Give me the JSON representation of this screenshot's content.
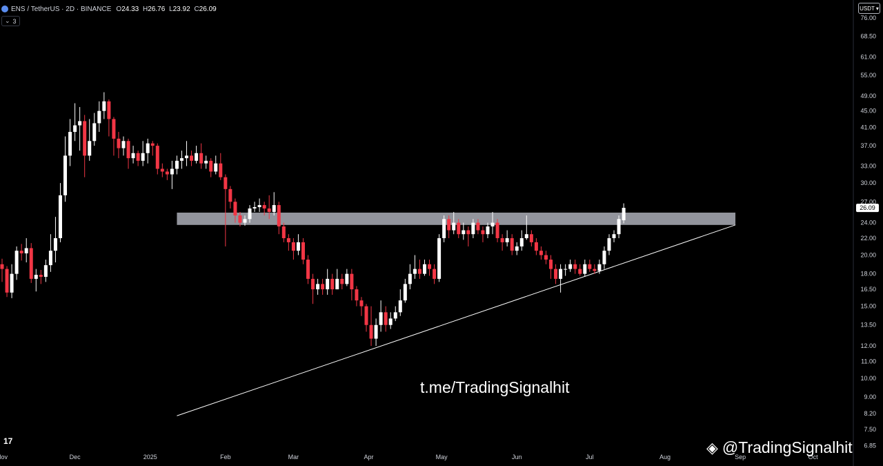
{
  "header": {
    "symbol": "ENS / TetherUS · 2D · BINANCE",
    "open_label": "O",
    "open": "24.33",
    "high_label": "H",
    "high": "26.76",
    "low_label": "L",
    "low": "23.92",
    "close_label": "C",
    "close": "26.09",
    "indicator_count": "3",
    "currency": "USDT"
  },
  "watermarks": {
    "center": "t.me/TradingSignalhit",
    "bottom_right": "@TradingSignalhit",
    "platform_logo": "17"
  },
  "colors": {
    "background": "#000000",
    "up": "#ffffff",
    "down": "#f23645",
    "zone": "#b2b5be",
    "trendline": "#ffffff"
  },
  "chart_data": {
    "type": "candlestick",
    "scale": "log",
    "ylim": [
      6.6,
      84
    ],
    "y_ticks": [
      "76.00",
      "68.50",
      "61.00",
      "55.00",
      "49.00",
      "45.00",
      "41.00",
      "37.00",
      "33.00",
      "30.00",
      "27.00",
      "24.00",
      "22.00",
      "20.00",
      "18.00",
      "16.50",
      "15.00",
      "13.50",
      "12.00",
      "11.00",
      "10.00",
      "9.00",
      "8.20",
      "7.50",
      "6.85"
    ],
    "x_ticks": [
      {
        "label": "Nov",
        "day": 0
      },
      {
        "label": "Dec",
        "day": 30
      },
      {
        "label": "2025",
        "day": 61
      },
      {
        "label": "Feb",
        "day": 92
      },
      {
        "label": "Mar",
        "day": 120
      },
      {
        "label": "Apr",
        "day": 151
      },
      {
        "label": "May",
        "day": 181
      },
      {
        "label": "Jun",
        "day": 212
      },
      {
        "label": "Jul",
        "day": 242
      },
      {
        "label": "Aug",
        "day": 273
      },
      {
        "label": "Sep",
        "day": 304
      },
      {
        "label": "Oct",
        "day": 334
      }
    ],
    "last_price": "26.09",
    "resistance_zone": {
      "low": 23.7,
      "high": 25.4,
      "start_day": 72,
      "end_day": 302
    },
    "trendline": {
      "start_day": 72,
      "start_value": 8.1,
      "end_day": 302,
      "end_value": 23.7
    },
    "candles": [
      [
        0,
        19,
        18.5,
        19.6,
        17.2
      ],
      [
        2,
        18.5,
        16.2,
        18.8,
        15.8
      ],
      [
        4,
        16.2,
        18,
        19,
        15.7
      ],
      [
        6,
        18,
        20.5,
        21,
        17.4
      ],
      [
        8,
        20.5,
        20.2,
        21.3,
        19.4
      ],
      [
        10,
        20.2,
        20.8,
        22,
        19.2
      ],
      [
        12,
        20.8,
        17.5,
        21.4,
        17.1
      ],
      [
        14,
        17.5,
        17.9,
        18.5,
        16.3
      ],
      [
        16,
        17.9,
        17.7,
        18.4,
        17
      ],
      [
        18,
        17.7,
        18.9,
        19.5,
        17.2
      ],
      [
        20,
        18.9,
        20.5,
        22.5,
        18.2
      ],
      [
        22,
        20.5,
        22,
        24.8,
        19.2
      ],
      [
        24,
        22,
        28,
        30,
        21.5
      ],
      [
        26,
        28,
        35,
        39,
        27
      ],
      [
        28,
        35,
        40,
        43,
        33
      ],
      [
        30,
        40,
        41.5,
        47,
        38
      ],
      [
        32,
        41.5,
        42.5,
        46,
        36
      ],
      [
        34,
        42.5,
        35,
        44,
        31
      ],
      [
        36,
        35,
        38,
        43,
        34
      ],
      [
        38,
        38,
        42,
        44.5,
        37
      ],
      [
        40,
        42,
        45,
        47.5,
        40
      ],
      [
        42,
        45,
        47.5,
        50,
        43
      ],
      [
        44,
        47.5,
        43,
        48,
        39
      ],
      [
        46,
        43,
        38.5,
        43.5,
        35
      ],
      [
        48,
        38.5,
        36.5,
        40,
        34.5
      ],
      [
        50,
        36.5,
        38,
        39,
        35
      ],
      [
        52,
        38,
        34.5,
        38.5,
        32.5
      ],
      [
        54,
        34.5,
        35.5,
        37,
        33.5
      ],
      [
        56,
        35.5,
        34,
        36,
        33
      ],
      [
        58,
        34,
        35.5,
        38,
        33
      ],
      [
        60,
        35.5,
        37.5,
        38.5,
        33.5
      ],
      [
        62,
        37.5,
        37,
        38,
        35
      ],
      [
        64,
        37,
        32.5,
        37.5,
        31.5
      ],
      [
        66,
        32.5,
        32,
        33.5,
        31
      ],
      [
        68,
        32,
        31.5,
        32.5,
        30.5
      ],
      [
        70,
        31.5,
        32.5,
        34,
        29
      ],
      [
        72,
        32.5,
        34,
        35,
        31.5
      ],
      [
        74,
        34,
        34.5,
        36,
        32.5
      ],
      [
        76,
        34.5,
        35,
        38,
        33
      ],
      [
        78,
        35,
        34,
        36,
        33
      ],
      [
        80,
        34,
        35.5,
        37,
        33.5
      ],
      [
        82,
        35.5,
        33.5,
        37.5,
        32.5
      ],
      [
        84,
        33.5,
        34,
        35,
        32.5
      ],
      [
        86,
        34,
        32,
        34.5,
        31
      ],
      [
        88,
        32,
        33.5,
        35,
        31.5
      ],
      [
        90,
        33.5,
        31,
        35.5,
        30.5
      ],
      [
        92,
        31,
        29,
        31.5,
        21
      ],
      [
        94,
        29,
        27,
        29.5,
        26
      ],
      [
        96,
        27,
        25,
        27.5,
        24
      ],
      [
        98,
        25,
        24,
        25.5,
        23.5
      ],
      [
        100,
        24,
        24.5,
        25,
        23.6
      ],
      [
        102,
        24.5,
        26,
        26.5,
        24
      ],
      [
        104,
        26,
        26.2,
        27,
        25.5
      ],
      [
        106,
        26.2,
        26.5,
        27.5,
        25.5
      ],
      [
        108,
        26.5,
        26,
        27,
        25
      ],
      [
        110,
        26,
        25.5,
        28,
        24.5
      ],
      [
        112,
        25.5,
        26.5,
        28.5,
        25
      ],
      [
        114,
        26.5,
        23.5,
        27,
        22.5
      ],
      [
        116,
        23.5,
        22,
        24,
        21.5
      ],
      [
        118,
        22,
        21.5,
        22.5,
        20.5
      ],
      [
        120,
        21.5,
        20.5,
        22,
        19.5
      ],
      [
        122,
        20.5,
        21.5,
        22.5,
        20
      ],
      [
        124,
        21.5,
        19.5,
        22,
        19
      ],
      [
        126,
        19.5,
        17.5,
        20,
        17
      ],
      [
        128,
        17.5,
        16.5,
        18,
        15.2
      ],
      [
        130,
        16.5,
        17,
        17.5,
        16
      ],
      [
        132,
        17,
        16.5,
        17.5,
        16
      ],
      [
        134,
        16.5,
        17.5,
        18.5,
        16
      ],
      [
        136,
        17.5,
        16.5,
        18,
        16
      ],
      [
        138,
        16.5,
        17.5,
        18.5,
        16.5
      ],
      [
        140,
        17.5,
        17,
        18,
        16.5
      ],
      [
        142,
        17,
        18,
        18.5,
        16.8
      ],
      [
        144,
        18,
        16.5,
        18.5,
        15.5
      ],
      [
        146,
        16.5,
        15.5,
        16.8,
        15
      ],
      [
        148,
        15.5,
        15,
        15.8,
        14.2
      ],
      [
        150,
        15,
        13.5,
        15.2,
        13
      ],
      [
        152,
        13.5,
        12.5,
        15,
        12
      ],
      [
        154,
        12.5,
        13.5,
        14,
        12
      ],
      [
        156,
        13.5,
        14.5,
        15.5,
        13
      ],
      [
        158,
        14.5,
        13.5,
        15,
        13
      ],
      [
        160,
        13.5,
        14,
        14.5,
        13.2
      ],
      [
        162,
        14,
        14.5,
        15,
        13.8
      ],
      [
        164,
        14.5,
        15.5,
        16.5,
        14.2
      ],
      [
        166,
        15.5,
        17,
        17.5,
        15.3
      ],
      [
        168,
        17,
        18,
        19,
        16.5
      ],
      [
        170,
        18,
        18.5,
        20,
        17.5
      ],
      [
        172,
        18.5,
        18,
        19.5,
        17.5
      ],
      [
        174,
        18,
        19,
        19.5,
        17.8
      ],
      [
        176,
        19,
        18.5,
        19.5,
        17.8
      ],
      [
        178,
        18.5,
        17.5,
        19,
        17
      ],
      [
        180,
        17.5,
        22,
        22.5,
        17.2
      ],
      [
        182,
        22,
        24.5,
        25,
        21.5
      ],
      [
        184,
        24.5,
        23,
        25,
        22
      ],
      [
        186,
        23,
        24,
        25.5,
        22.5
      ],
      [
        188,
        24,
        22.5,
        24.5,
        22
      ],
      [
        190,
        22.5,
        23,
        24,
        21.8
      ],
      [
        192,
        23,
        22.5,
        23.5,
        21
      ],
      [
        194,
        22.5,
        24,
        24.5,
        22
      ],
      [
        196,
        24,
        23,
        24.5,
        22.5
      ],
      [
        198,
        23,
        22.5,
        23.5,
        21.5
      ],
      [
        200,
        22.5,
        23.5,
        24,
        22
      ],
      [
        202,
        23.5,
        24,
        25.5,
        22.5
      ],
      [
        204,
        24,
        22,
        24.5,
        21.5
      ],
      [
        206,
        22,
        21.5,
        22.5,
        20.5
      ],
      [
        208,
        21.5,
        22,
        23,
        21
      ],
      [
        210,
        22,
        20.5,
        22.5,
        20
      ],
      [
        212,
        20.5,
        21,
        21.5,
        20
      ],
      [
        214,
        21,
        22,
        23,
        20.5
      ],
      [
        216,
        22,
        22.5,
        25,
        21.8
      ],
      [
        218,
        22.5,
        21.5,
        23,
        21
      ],
      [
        220,
        21.5,
        20.5,
        22,
        20
      ],
      [
        222,
        20.5,
        20,
        21,
        19.5
      ],
      [
        224,
        20,
        19.5,
        20.5,
        19
      ],
      [
        226,
        19.5,
        18.5,
        20,
        17.5
      ],
      [
        228,
        18.5,
        17.5,
        19,
        17
      ],
      [
        230,
        17.5,
        18.5,
        19,
        16.2
      ],
      [
        232,
        18.5,
        18.5,
        19,
        17.8
      ],
      [
        234,
        18.5,
        19,
        19.5,
        18.2
      ],
      [
        236,
        19,
        18.5,
        19.5,
        18
      ],
      [
        238,
        18.5,
        18,
        19,
        17.8
      ],
      [
        240,
        18,
        19,
        19.5,
        17.7
      ],
      [
        242,
        19,
        18.5,
        19.5,
        18.2
      ],
      [
        244,
        18.5,
        18.3,
        19,
        18
      ],
      [
        246,
        18.3,
        19,
        19.5,
        18
      ],
      [
        248,
        19,
        20.5,
        21,
        18.5
      ],
      [
        250,
        20.5,
        22,
        22.5,
        20
      ],
      [
        252,
        22,
        22.5,
        23,
        21.5
      ],
      [
        254,
        22.5,
        24.5,
        25,
        22
      ],
      [
        256,
        24.33,
        26.09,
        26.76,
        23.92
      ]
    ]
  }
}
